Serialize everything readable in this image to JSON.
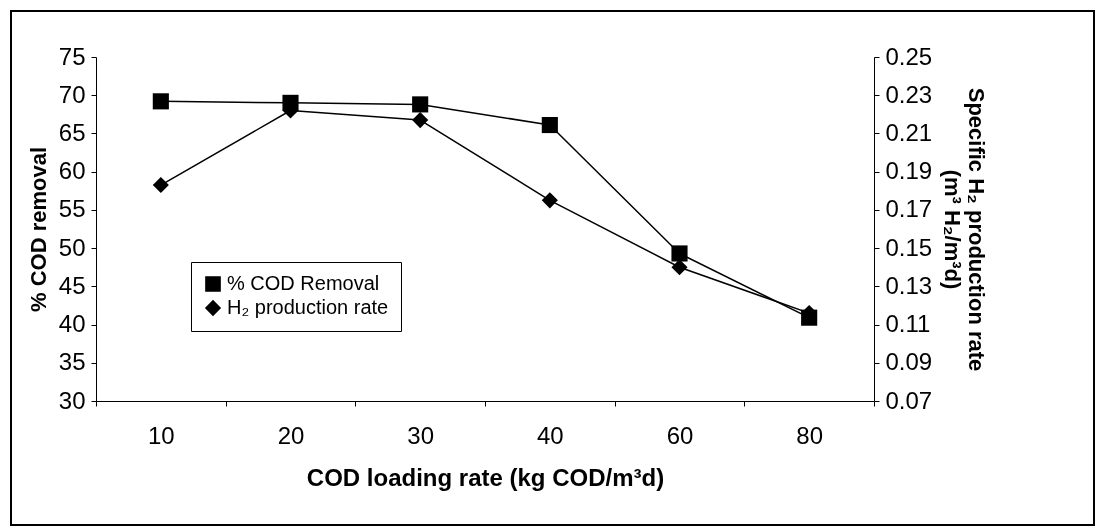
{
  "chart_data": {
    "type": "line",
    "xlabel": "COD loading rate (kg COD/m³d)",
    "ylabel": "% COD removal",
    "y2label": "Specific H₂ production rate (m³ H₂/m³d)",
    "categories": [
      "10",
      "20",
      "30",
      "40",
      "60",
      "80"
    ],
    "series": [
      {
        "name": "% COD Removal",
        "color": "#000000",
        "marker": "square",
        "values": [
          69.2,
          69.0,
          68.8,
          66.1,
          49.3,
          40.9
        ]
      },
      {
        "name": "H₂ production rate",
        "color": "#000000",
        "marker": "diamond",
        "axis": "y2",
        "values": [
          0.183,
          0.222,
          0.217,
          0.175,
          0.14,
          0.116
        ]
      }
    ],
    "ylim": [
      30,
      75
    ],
    "yticks": [
      30,
      35,
      40,
      45,
      50,
      55,
      60,
      65,
      70,
      75
    ],
    "y2lim": [
      0.07,
      0.25
    ],
    "y2ticks": [
      {
        "value": 0.07,
        "label": "0.07"
      },
      {
        "value": 0.09,
        "label": "0.09"
      },
      {
        "value": 0.11,
        "label": "0.11"
      },
      {
        "value": 0.13,
        "label": "0.13"
      },
      {
        "value": 0.15,
        "label": "0.15"
      },
      {
        "value": 0.17,
        "label": "0.17"
      },
      {
        "value": 0.19,
        "label": "0.19"
      },
      {
        "value": 0.21,
        "label": "0.21"
      },
      {
        "value": 0.23,
        "label": "0.23"
      },
      {
        "value": 0.25,
        "label": "0.25"
      }
    ],
    "grid": false,
    "legend": "left",
    "line_style": "solid"
  }
}
